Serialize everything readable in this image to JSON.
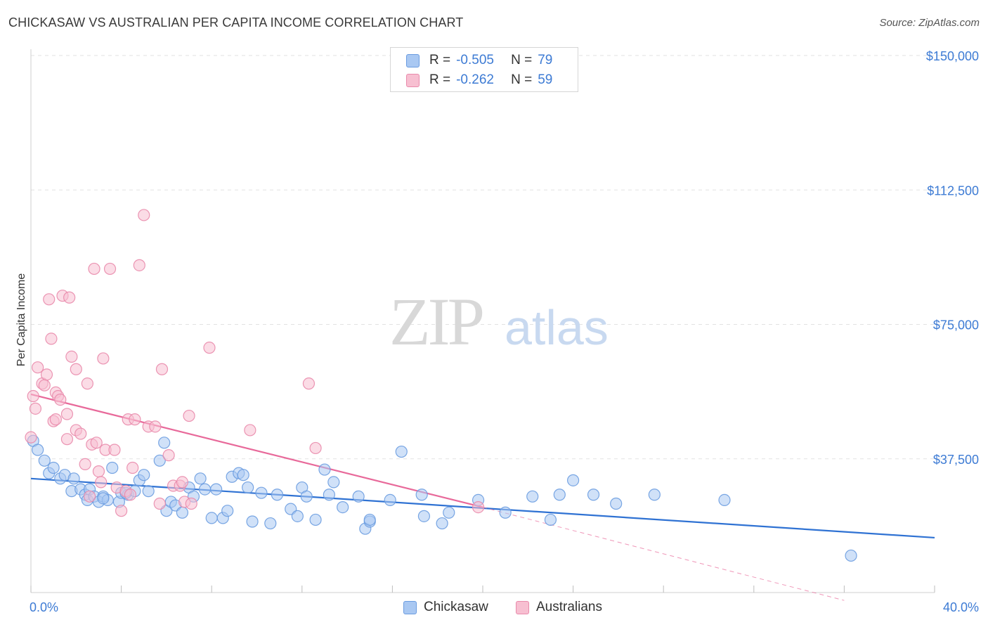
{
  "title": "CHICKASAW VS AUSTRALIAN PER CAPITA INCOME CORRELATION CHART",
  "source": "Source: ZipAtlas.com",
  "watermark": {
    "zip": "ZIP",
    "atlas": "atlas"
  },
  "legend": {
    "rows": [
      {
        "r_label": "R =",
        "r_value": "-0.505",
        "n_label": "N =",
        "n_value": "79",
        "color": "#a9c8f2",
        "border": "#6a9ce0"
      },
      {
        "r_label": "R =",
        "r_value": "-0.262",
        "n_label": "N =",
        "n_value": "59",
        "color": "#f7bfd1",
        "border": "#e98aab"
      }
    ]
  },
  "bottom_legend": [
    "Chickasaw",
    "Australians"
  ],
  "chart_data": {
    "type": "scatter",
    "title": "CHICKASAW VS AUSTRALIAN PER CAPITA INCOME CORRELATION CHART",
    "xlabel": "",
    "ylabel": "Per Capita Income",
    "xlim": [
      0,
      40
    ],
    "ylim": [
      0,
      155000
    ],
    "x_tick_labels": [
      "0.0%",
      "40.0%"
    ],
    "y_ticks": [
      37500,
      75000,
      112500,
      150000
    ],
    "y_tick_labels": [
      "$37,500",
      "$75,000",
      "$112,500",
      "$150,000"
    ],
    "grid": true,
    "series": [
      {
        "name": "Chickasaw",
        "color": "#6a9ce0",
        "fill": "#a9c8f2",
        "trend": {
          "x": [
            0,
            40
          ],
          "y": [
            32000,
            15500
          ],
          "color": "#2f72d3"
        },
        "points": [
          [
            0.1,
            42500
          ],
          [
            0.3,
            40000
          ],
          [
            0.6,
            37000
          ],
          [
            0.8,
            33500
          ],
          [
            1.0,
            35000
          ],
          [
            1.3,
            32000
          ],
          [
            1.5,
            33000
          ],
          [
            1.8,
            28500
          ],
          [
            1.9,
            32000
          ],
          [
            2.2,
            29000
          ],
          [
            2.4,
            27500
          ],
          [
            2.5,
            26000
          ],
          [
            2.6,
            29000
          ],
          [
            2.8,
            27000
          ],
          [
            3.0,
            25500
          ],
          [
            3.2,
            27000
          ],
          [
            3.4,
            26000
          ],
          [
            3.6,
            35000
          ],
          [
            3.9,
            25500
          ],
          [
            4.0,
            28000
          ],
          [
            4.3,
            27500
          ],
          [
            4.6,
            28500
          ],
          [
            4.8,
            31500
          ],
          [
            5.0,
            33000
          ],
          [
            5.2,
            28500
          ],
          [
            5.7,
            37000
          ],
          [
            5.9,
            42000
          ],
          [
            6.0,
            23000
          ],
          [
            6.2,
            25500
          ],
          [
            6.4,
            24500
          ],
          [
            6.7,
            22500
          ],
          [
            7.0,
            29500
          ],
          [
            7.2,
            27000
          ],
          [
            7.5,
            32000
          ],
          [
            7.7,
            29000
          ],
          [
            8.0,
            21000
          ],
          [
            8.2,
            29000
          ],
          [
            8.5,
            21000
          ],
          [
            8.7,
            23000
          ],
          [
            8.9,
            32500
          ],
          [
            9.2,
            33500
          ],
          [
            9.4,
            33000
          ],
          [
            9.6,
            29500
          ],
          [
            9.8,
            20000
          ],
          [
            10.2,
            28000
          ],
          [
            10.6,
            19500
          ],
          [
            10.9,
            27500
          ],
          [
            11.5,
            23500
          ],
          [
            11.8,
            21500
          ],
          [
            12.0,
            29500
          ],
          [
            12.2,
            27000
          ],
          [
            12.6,
            20500
          ],
          [
            13.0,
            34500
          ],
          [
            13.2,
            27500
          ],
          [
            13.4,
            31000
          ],
          [
            13.8,
            24000
          ],
          [
            14.5,
            27000
          ],
          [
            14.8,
            18000
          ],
          [
            15.0,
            20000
          ],
          [
            15.9,
            26000
          ],
          [
            16.4,
            39500
          ],
          [
            15.0,
            20500
          ],
          [
            17.3,
            27500
          ],
          [
            17.4,
            21500
          ],
          [
            18.2,
            19500
          ],
          [
            18.5,
            22500
          ],
          [
            19.8,
            26000
          ],
          [
            21.0,
            22500
          ],
          [
            22.2,
            27000
          ],
          [
            23.0,
            20500
          ],
          [
            23.4,
            27500
          ],
          [
            24.0,
            31500
          ],
          [
            24.9,
            27500
          ],
          [
            25.9,
            25000
          ],
          [
            27.6,
            27500
          ],
          [
            30.7,
            26000
          ],
          [
            36.3,
            10500
          ],
          [
            4.2,
            28000
          ],
          [
            3.2,
            26500
          ]
        ]
      },
      {
        "name": "Australians",
        "color": "#e98aab",
        "fill": "#f7bfd1",
        "trend": {
          "x": [
            0,
            20
          ],
          "y": [
            55500,
            24000
          ],
          "color": "#e8699a",
          "dashed_to": {
            "x": 36,
            "y": -2000
          }
        },
        "points": [
          [
            0.0,
            43500
          ],
          [
            0.1,
            55000
          ],
          [
            0.2,
            51500
          ],
          [
            0.3,
            63000
          ],
          [
            0.5,
            58500
          ],
          [
            0.6,
            58000
          ],
          [
            0.7,
            61000
          ],
          [
            0.8,
            82000
          ],
          [
            0.9,
            71000
          ],
          [
            1.0,
            48000
          ],
          [
            1.1,
            48500
          ],
          [
            1.1,
            56000
          ],
          [
            1.2,
            55000
          ],
          [
            1.3,
            54000
          ],
          [
            1.4,
            83000
          ],
          [
            1.6,
            43000
          ],
          [
            1.6,
            50000
          ],
          [
            1.7,
            82500
          ],
          [
            1.8,
            66000
          ],
          [
            2.0,
            45500
          ],
          [
            2.0,
            62500
          ],
          [
            2.2,
            44500
          ],
          [
            2.4,
            36000
          ],
          [
            2.5,
            58500
          ],
          [
            2.6,
            27000
          ],
          [
            2.7,
            41500
          ],
          [
            2.8,
            90500
          ],
          [
            2.9,
            42000
          ],
          [
            3.0,
            34000
          ],
          [
            3.1,
            31000
          ],
          [
            3.2,
            65500
          ],
          [
            3.3,
            40000
          ],
          [
            3.5,
            90500
          ],
          [
            3.7,
            40000
          ],
          [
            3.8,
            29500
          ],
          [
            4.0,
            23000
          ],
          [
            4.2,
            28500
          ],
          [
            4.3,
            48500
          ],
          [
            4.4,
            27500
          ],
          [
            4.5,
            35000
          ],
          [
            4.6,
            48500
          ],
          [
            4.8,
            91500
          ],
          [
            5.0,
            105500
          ],
          [
            5.2,
            46500
          ],
          [
            5.5,
            46500
          ],
          [
            5.7,
            25000
          ],
          [
            5.8,
            62500
          ],
          [
            6.1,
            38500
          ],
          [
            6.3,
            30000
          ],
          [
            6.6,
            30000
          ],
          [
            6.7,
            31000
          ],
          [
            6.8,
            25500
          ],
          [
            7.0,
            49500
          ],
          [
            7.1,
            25000
          ],
          [
            7.9,
            68500
          ],
          [
            9.7,
            45500
          ],
          [
            12.3,
            58500
          ],
          [
            12.6,
            40500
          ],
          [
            19.8,
            24000
          ]
        ]
      }
    ]
  }
}
